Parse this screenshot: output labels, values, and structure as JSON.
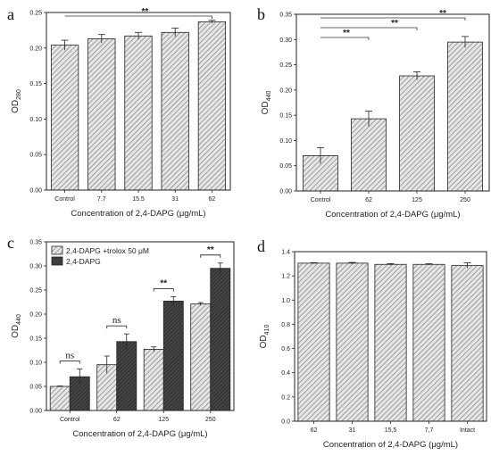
{
  "chart_data": [
    {
      "panel": "a",
      "type": "bar",
      "categories": [
        "Control",
        "7.7",
        "15.5",
        "31",
        "62"
      ],
      "values": [
        0.204,
        0.213,
        0.217,
        0.222,
        0.237
      ],
      "errors": [
        0.007,
        0.006,
        0.005,
        0.006,
        0.002
      ],
      "xlabel": "Concentration of 2,4-DAPG (μg/mL)",
      "ylabel": "OD",
      "ylabel_sub": "280",
      "ylim": [
        0,
        0.25
      ],
      "yticks": [
        "0.00",
        "0.05",
        "0.10",
        "0.15",
        "0.20",
        "0.25"
      ],
      "significance": [
        {
          "from": 0,
          "to": 4,
          "label": "**"
        }
      ]
    },
    {
      "panel": "b",
      "type": "bar",
      "categories": [
        "Control",
        "62",
        "125",
        "250"
      ],
      "values": [
        0.07,
        0.143,
        0.228,
        0.295
      ],
      "errors": [
        0.016,
        0.015,
        0.008,
        0.011
      ],
      "xlabel": "Concentration of 2,4-DAPG (μg/mL)",
      "ylabel": "OD",
      "ylabel_sub": "440",
      "ylim": [
        0,
        0.35
      ],
      "yticks": [
        "0.00",
        "0.05",
        "0.10",
        "0.15",
        "0.20",
        "0.25",
        "0.30",
        "0.35"
      ],
      "significance": [
        {
          "from": 0,
          "to": 1,
          "label": "**"
        },
        {
          "from": 0,
          "to": 2,
          "label": "**"
        },
        {
          "from": 0,
          "to": 3,
          "label": "**"
        }
      ]
    },
    {
      "panel": "c",
      "type": "bar",
      "categories": [
        "Control",
        "62",
        "125",
        "250"
      ],
      "series": [
        {
          "name": "2,4-DAPG +trolox 50 μM",
          "values": [
            0.05,
            0.095,
            0.127,
            0.221
          ],
          "errors": [
            0.001,
            0.018,
            0.005,
            0.003
          ]
        },
        {
          "name": "2,4-DAPG",
          "values": [
            0.07,
            0.143,
            0.227,
            0.295
          ],
          "errors": [
            0.016,
            0.016,
            0.009,
            0.011
          ]
        }
      ],
      "xlabel": "Concentration of 2,4-DAPG (μg/mL)",
      "ylabel": "OD",
      "ylabel_sub": "440",
      "ylim": [
        0,
        0.35
      ],
      "yticks": [
        "0.00",
        "0.05",
        "0.10",
        "0.15",
        "0.20",
        "0.25",
        "0.30",
        "0.35"
      ],
      "legend": "top-left",
      "significance": [
        {
          "category": 0,
          "label": "ns"
        },
        {
          "category": 1,
          "label": "ns"
        },
        {
          "category": 2,
          "label": "**"
        },
        {
          "category": 3,
          "label": "**"
        }
      ]
    },
    {
      "panel": "d",
      "type": "bar",
      "categories": [
        "62",
        "31",
        "15,5",
        "7,7",
        "Intact"
      ],
      "values": [
        1.305,
        1.305,
        1.295,
        1.295,
        1.285
      ],
      "errors": [
        0.004,
        0.006,
        0.006,
        0.005,
        0.022
      ],
      "xlabel": "Concentration of 2,4-DAPG (μg/mL)",
      "ylabel": "OD",
      "ylabel_sub": "410",
      "ylim": [
        0,
        1.4
      ],
      "yticks": [
        "0.0",
        "0.2",
        "0.4",
        "0.6",
        "0.8",
        "1.0",
        "1.2",
        "1.4"
      ]
    }
  ],
  "colors": {
    "hatch_bar": "#9a9a9a",
    "dark_bar": "#3a3a3a",
    "axis": "#222222",
    "bracket": "#333333"
  }
}
